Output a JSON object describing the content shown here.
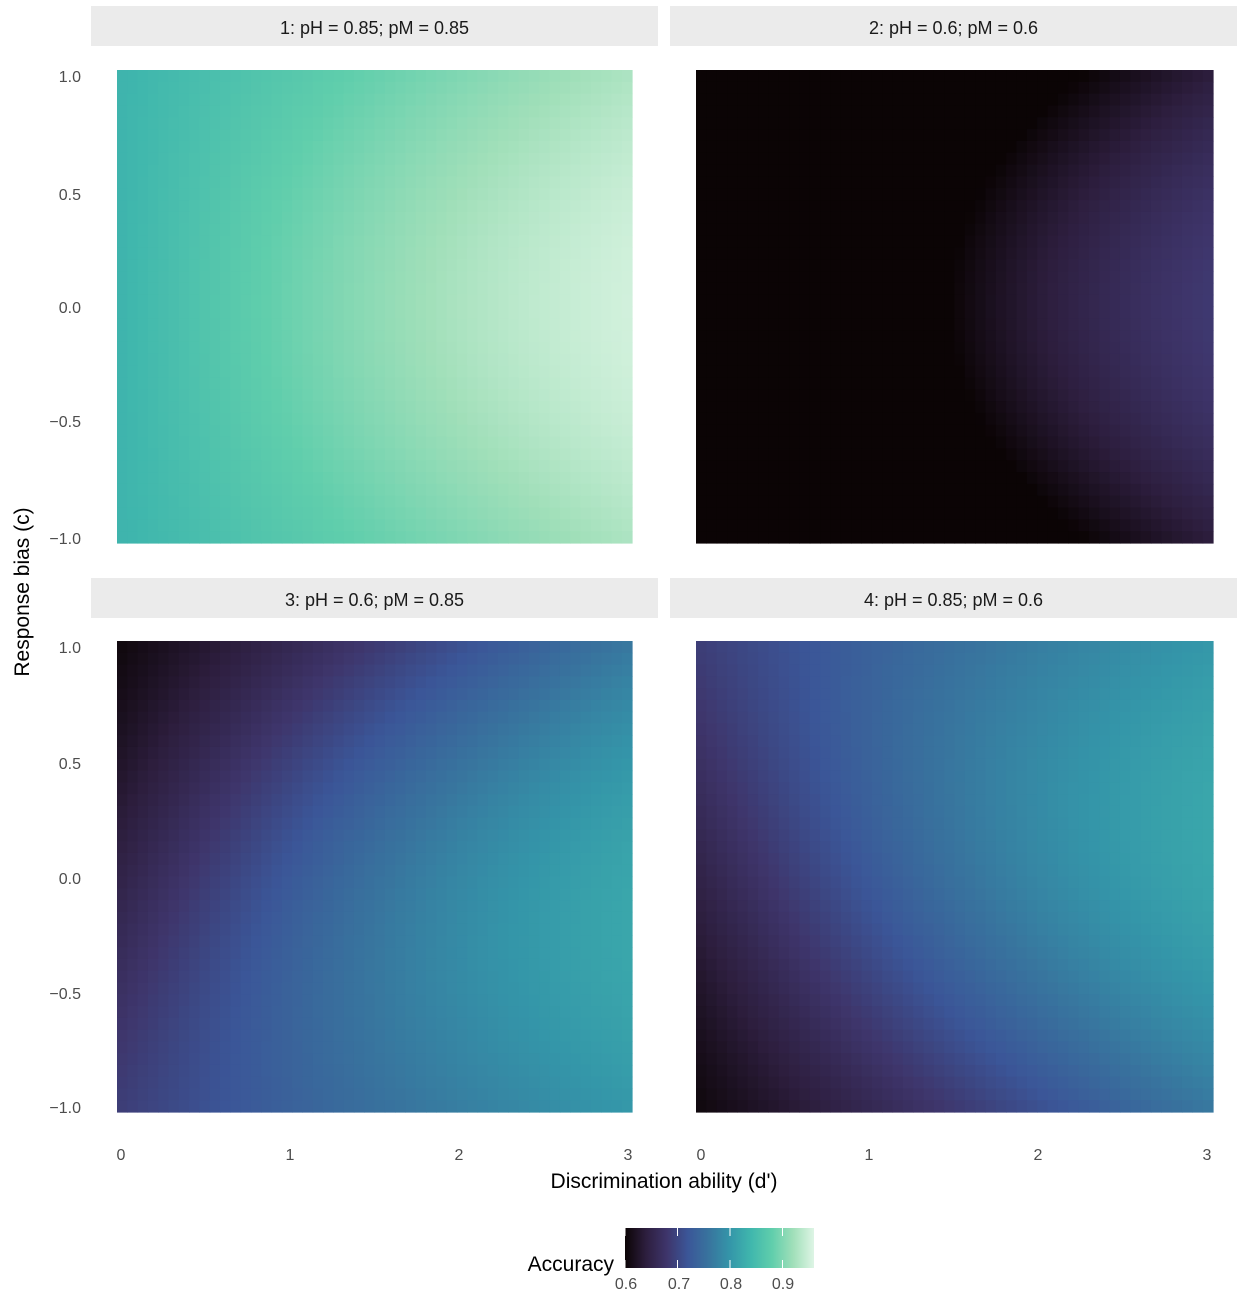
{
  "chart_data": {
    "type": "heatmap",
    "xlabel": "Discrimination ability (d')",
    "ylabel": "Response bias (c)",
    "x_range": [
      0,
      3
    ],
    "y_range": [
      -1,
      1
    ],
    "x_ticks": [
      0,
      1,
      2,
      3
    ],
    "x_tick_labels": [
      "0",
      "1",
      "2",
      "3"
    ],
    "y_ticks": [
      1.0,
      0.5,
      0.0,
      -0.5,
      -1.0
    ],
    "y_tick_labels": [
      "1.0",
      "0.5",
      "0.0",
      "−0.5",
      "−1.0"
    ],
    "facets": [
      {
        "label": "1: pH = 0.85; pM = 0.85",
        "pH": 0.85,
        "pM": 0.85
      },
      {
        "label": "2: pH = 0.6; pM = 0.6",
        "pH": 0.6,
        "pM": 0.6
      },
      {
        "label": "3: pH = 0.6; pM = 0.85",
        "pH": 0.6,
        "pM": 0.85
      },
      {
        "label": "4: pH = 0.85; pM = 0.6",
        "pH": 0.85,
        "pM": 0.6
      }
    ],
    "legend": {
      "title": "Accuracy",
      "position": "bottom",
      "range": [
        0.6,
        0.96
      ],
      "ticks": [
        0.6,
        0.7,
        0.8,
        0.9
      ],
      "tick_labels": [
        "0.6",
        "0.7",
        "0.8",
        "0.9"
      ]
    },
    "colormap": [
      "#0b0405",
      "#2d1e3e",
      "#3e356b",
      "#3b5698",
      "#38749e",
      "#3496a9",
      "#40b7ad",
      "#60ceac",
      "#a0dfb9",
      "#def5e5"
    ],
    "grid": false
  }
}
